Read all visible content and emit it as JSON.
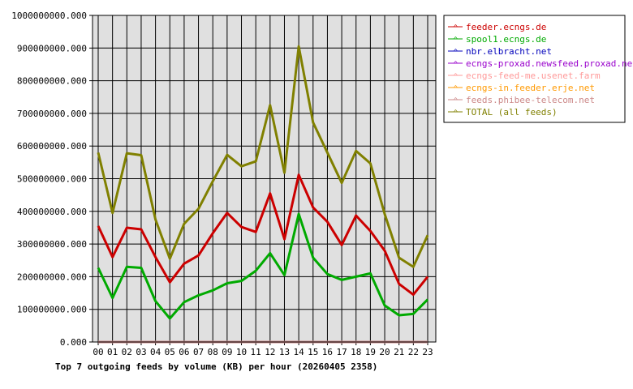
{
  "chart_data": {
    "type": "line",
    "title": "Top 7 outgoing feeds by volume (KB) per hour (20260405 2358)",
    "x": [
      "00",
      "01",
      "02",
      "03",
      "04",
      "05",
      "06",
      "07",
      "08",
      "09",
      "10",
      "11",
      "12",
      "13",
      "14",
      "15",
      "16",
      "17",
      "18",
      "19",
      "20",
      "21",
      "22",
      "23"
    ],
    "ylim": [
      0,
      1000000000
    ],
    "y_ticks": [
      "0.000",
      "100000000.000",
      "200000000.000",
      "300000000.000",
      "400000000.000",
      "500000000.000",
      "600000000.000",
      "700000000.000",
      "800000000.000",
      "900000000.000",
      "1000000000.000"
    ],
    "grid": true,
    "legend_position": "top-right",
    "series": [
      {
        "name": "feeder.ecngs.de",
        "color": "#cc0000",
        "values": [
          355000000,
          260000000,
          350000000,
          345000000,
          260000000,
          183000000,
          240000000,
          265000000,
          333000000,
          395000000,
          352000000,
          337000000,
          455000000,
          315000000,
          512000000,
          412000000,
          368000000,
          297000000,
          387000000,
          340000000,
          280000000,
          178000000,
          145000000,
          200000000
        ]
      },
      {
        "name": "spool1.ecngs.de",
        "color": "#00aa00",
        "values": [
          227000000,
          135000000,
          230000000,
          227000000,
          125000000,
          72000000,
          122000000,
          143000000,
          158000000,
          180000000,
          187000000,
          218000000,
          272000000,
          205000000,
          392000000,
          258000000,
          208000000,
          190000000,
          200000000,
          210000000,
          112000000,
          82000000,
          86000000,
          130000000
        ]
      },
      {
        "name": "nbr.elbracht.net",
        "color": "#0000bb",
        "values": [
          0,
          0,
          0,
          0,
          0,
          0,
          0,
          0,
          0,
          0,
          0,
          0,
          0,
          0,
          0,
          0,
          0,
          0,
          0,
          0,
          0,
          0,
          0,
          0
        ]
      },
      {
        "name": "ecngs-proxad.newsfeed.proxad.net",
        "color": "#9900cc",
        "values": [
          0,
          0,
          0,
          0,
          0,
          0,
          0,
          0,
          0,
          0,
          0,
          0,
          0,
          0,
          0,
          0,
          0,
          0,
          0,
          0,
          0,
          0,
          0,
          0
        ]
      },
      {
        "name": "ecngs-feed-me.usenet.farm",
        "color": "#ff9999",
        "values": [
          0,
          0,
          0,
          0,
          0,
          0,
          0,
          0,
          0,
          0,
          0,
          0,
          0,
          0,
          0,
          0,
          0,
          0,
          0,
          0,
          0,
          0,
          0,
          0
        ]
      },
      {
        "name": "ecngs-in.feeder.erje.net",
        "color": "#ff9900",
        "values": [
          0,
          0,
          0,
          0,
          0,
          0,
          0,
          0,
          0,
          0,
          0,
          0,
          0,
          0,
          0,
          0,
          0,
          0,
          0,
          0,
          0,
          0,
          0,
          0
        ]
      },
      {
        "name": "feeds.phibee-telecom.net",
        "color": "#cc8888",
        "values": [
          0,
          0,
          0,
          0,
          0,
          0,
          0,
          0,
          0,
          0,
          0,
          0,
          0,
          0,
          0,
          0,
          0,
          0,
          0,
          0,
          0,
          0,
          0,
          0
        ]
      },
      {
        "name": "TOTAL (all feeds)",
        "color": "#808000",
        "values": [
          580000000,
          395000000,
          578000000,
          572000000,
          375000000,
          255000000,
          362000000,
          408000000,
          492000000,
          573000000,
          538000000,
          553000000,
          725000000,
          518000000,
          905000000,
          672000000,
          580000000,
          487000000,
          585000000,
          547000000,
          392000000,
          258000000,
          230000000,
          327000000
        ]
      }
    ]
  }
}
